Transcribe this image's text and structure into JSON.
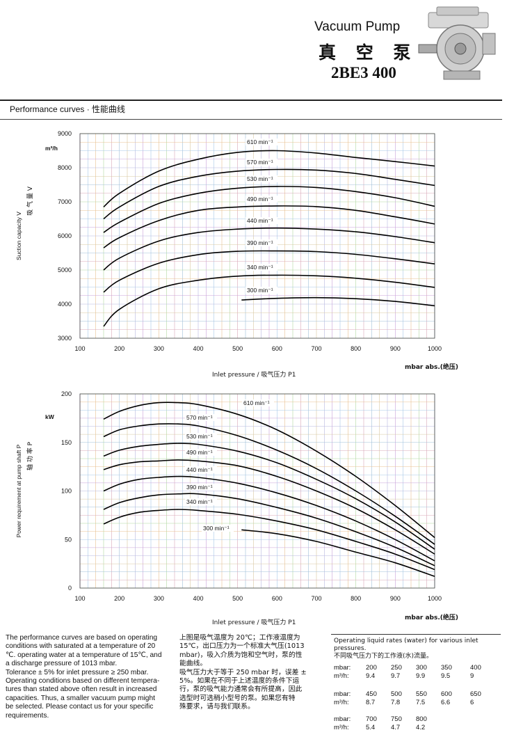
{
  "header": {
    "title_en": "Vacuum Pump",
    "title_cn": "真 空 泵",
    "model": "2BE3 400"
  },
  "section_heading": "Performance curves · 性能曲线",
  "chart_data": [
    {
      "type": "line",
      "xlabel": "Inlet pressure / 吸气压力 P1",
      "xunit": "mbar abs.(绝压)",
      "ylabel_en": "Suction capacity V",
      "ylabel_cn": "吸 气 量 V",
      "yunit": "m³/h",
      "xlim": [
        100,
        1000
      ],
      "ylim": [
        3000,
        9000
      ],
      "xticks": [
        100,
        200,
        300,
        400,
        500,
        600,
        700,
        800,
        900,
        1000
      ],
      "yticks": [
        3000,
        4000,
        5000,
        6000,
        7000,
        8000,
        9000
      ],
      "grid": true,
      "series": [
        {
          "name": "610 min⁻¹",
          "x": [
            160,
            200,
            300,
            400,
            500,
            600,
            700,
            800,
            900,
            1000
          ],
          "values": [
            6850,
            7250,
            7900,
            8250,
            8450,
            8500,
            8430,
            8300,
            8180,
            8050
          ]
        },
        {
          "name": "570 min⁻¹",
          "x": [
            160,
            200,
            300,
            400,
            500,
            600,
            700,
            800,
            900,
            1000
          ],
          "values": [
            6500,
            6850,
            7450,
            7750,
            7900,
            7950,
            7930,
            7830,
            7660,
            7480
          ]
        },
        {
          "name": "530 min⁻¹",
          "x": [
            160,
            200,
            300,
            400,
            500,
            600,
            700,
            800,
            900,
            1000
          ],
          "values": [
            6100,
            6400,
            6950,
            7250,
            7400,
            7450,
            7420,
            7300,
            7120,
            6870
          ]
        },
        {
          "name": "490 min⁻¹",
          "x": [
            160,
            200,
            300,
            400,
            500,
            600,
            700,
            800,
            900,
            1000
          ],
          "values": [
            5650,
            5950,
            6450,
            6750,
            6850,
            6880,
            6860,
            6750,
            6560,
            6350
          ]
        },
        {
          "name": "440 min⁻¹",
          "x": [
            160,
            200,
            300,
            400,
            500,
            600,
            700,
            800,
            900,
            1000
          ],
          "values": [
            5000,
            5350,
            5850,
            6100,
            6200,
            6230,
            6200,
            6120,
            5980,
            5800
          ]
        },
        {
          "name": "390 min⁻¹",
          "x": [
            160,
            200,
            300,
            400,
            500,
            600,
            700,
            800,
            900,
            1000
          ],
          "values": [
            4350,
            4700,
            5200,
            5450,
            5550,
            5560,
            5540,
            5460,
            5330,
            5180
          ]
        },
        {
          "name": "340 min⁻¹",
          "x": [
            160,
            200,
            300,
            400,
            500,
            600,
            700,
            800,
            900,
            1000
          ],
          "values": [
            3350,
            3850,
            4450,
            4700,
            4820,
            4850,
            4830,
            4760,
            4640,
            4490
          ]
        },
        {
          "name": "300 min⁻¹",
          "x": [
            510,
            600,
            700,
            800,
            900,
            1000
          ],
          "values": [
            4120,
            4170,
            4190,
            4160,
            4080,
            3950
          ]
        }
      ]
    },
    {
      "type": "line",
      "xlabel": "Inlet pressure / 吸气压力 P1",
      "xunit": "mbar abs.(绝压)",
      "ylabel_en": "Power requirement at pump shaft P",
      "ylabel_cn": "轴 功 率 P",
      "yunit": "kW",
      "xlim": [
        100,
        1000
      ],
      "ylim": [
        0,
        200
      ],
      "xticks": [
        100,
        200,
        300,
        400,
        500,
        600,
        700,
        800,
        900,
        1000
      ],
      "yticks": [
        0,
        50,
        100,
        150,
        200
      ],
      "grid": true,
      "series": [
        {
          "name": "610 min⁻¹",
          "x": [
            160,
            200,
            250,
            300,
            350,
            400,
            500,
            600,
            700,
            800,
            900,
            1000
          ],
          "values": [
            174,
            182,
            188,
            191,
            191,
            189,
            179,
            163,
            141,
            115,
            85,
            52
          ]
        },
        {
          "name": "570 min⁻¹",
          "x": [
            160,
            200,
            250,
            300,
            350,
            400,
            500,
            600,
            700,
            800,
            900,
            1000
          ],
          "values": [
            156,
            163,
            167,
            169,
            169,
            167,
            157,
            142,
            123,
            100,
            74,
            45
          ]
        },
        {
          "name": "530 min⁻¹",
          "x": [
            160,
            200,
            250,
            300,
            350,
            400,
            500,
            600,
            700,
            800,
            900,
            1000
          ],
          "values": [
            136,
            142,
            146,
            148,
            149,
            148,
            141,
            129,
            112,
            92,
            68,
            40
          ]
        },
        {
          "name": "490 min⁻¹",
          "x": [
            160,
            200,
            250,
            300,
            350,
            400,
            500,
            600,
            700,
            800,
            900,
            1000
          ],
          "values": [
            122,
            127,
            130,
            131,
            132,
            131,
            126,
            115,
            100,
            82,
            60,
            35
          ]
        },
        {
          "name": "440 min⁻¹",
          "x": [
            160,
            200,
            250,
            300,
            350,
            400,
            500,
            600,
            700,
            800,
            900,
            1000
          ],
          "values": [
            100,
            107,
            112,
            114,
            115,
            114,
            108,
            98,
            85,
            69,
            50,
            28
          ]
        },
        {
          "name": "390 min⁻¹",
          "x": [
            160,
            200,
            250,
            300,
            350,
            400,
            500,
            600,
            700,
            800,
            900,
            1000
          ],
          "values": [
            81,
            88,
            93,
            96,
            97,
            97,
            92,
            83,
            72,
            58,
            42,
            23
          ]
        },
        {
          "name": "340 min⁻¹",
          "x": [
            160,
            200,
            250,
            300,
            350,
            400,
            500,
            600,
            700,
            800,
            900,
            1000
          ],
          "values": [
            66,
            73,
            78,
            80,
            81,
            80,
            76,
            69,
            60,
            48,
            35,
            19
          ]
        },
        {
          "name": "300 min⁻¹",
          "x": [
            510,
            600,
            700,
            800,
            900,
            1000
          ],
          "values": [
            60,
            56,
            48,
            37,
            26,
            12
          ]
        }
      ]
    }
  ],
  "notes": {
    "en": [
      "The performance curves are based on operating",
      "conditions with saturated at a temperature of 20",
      "℃. operating water at a temperature of 15℃, and",
      "a discharge pressure of 1013 mbar.",
      "Tolerance ± 5% for inlet pressure ≥ 250 mbar.",
      "Operating conditions based on different tempera-",
      "tures than stated above often result in increased",
      "capacities. Thus, a smaller vacuum pump might",
      "be selected. Please contact us for your specific",
      "requirements."
    ],
    "cn": [
      "上图是吸气温度为 20℃；工作液温度为",
      "15℃，出口压力为一个标准大气压(1013",
      "mbar)，吸入介质为饱和空气时，泵的性",
      "能曲线。",
      "吸气压力大于等于 250 mbar 时，误差 ±",
      "5%。如果在不同于上述温度的条件下运",
      "行，泵的吸气能力通常会有所提高，因此",
      "选型时可选稍小型号的泵。如果您有特",
      "殊要求，请与我们联系。"
    ]
  },
  "operating_liquid": {
    "title_en": "Operating liquid rates (water) for various inlet pressures.",
    "title_cn": "不同吸气压力下的工作液(水)流量。",
    "label_mbar": "mbar:",
    "label_rate": "m³/h:",
    "groups": [
      {
        "mbar": [
          "200",
          "250",
          "300",
          "350",
          "400"
        ],
        "rate": [
          "9.4",
          "9.7",
          "9.9",
          "9.5",
          "9"
        ]
      },
      {
        "mbar": [
          "450",
          "500",
          "550",
          "600",
          "650"
        ],
        "rate": [
          "8.7",
          "7.8",
          "7.5",
          "6.6",
          "6"
        ]
      },
      {
        "mbar": [
          "700",
          "750",
          "800"
        ],
        "rate": [
          "5.4",
          "4.7",
          "4.2"
        ]
      }
    ]
  }
}
